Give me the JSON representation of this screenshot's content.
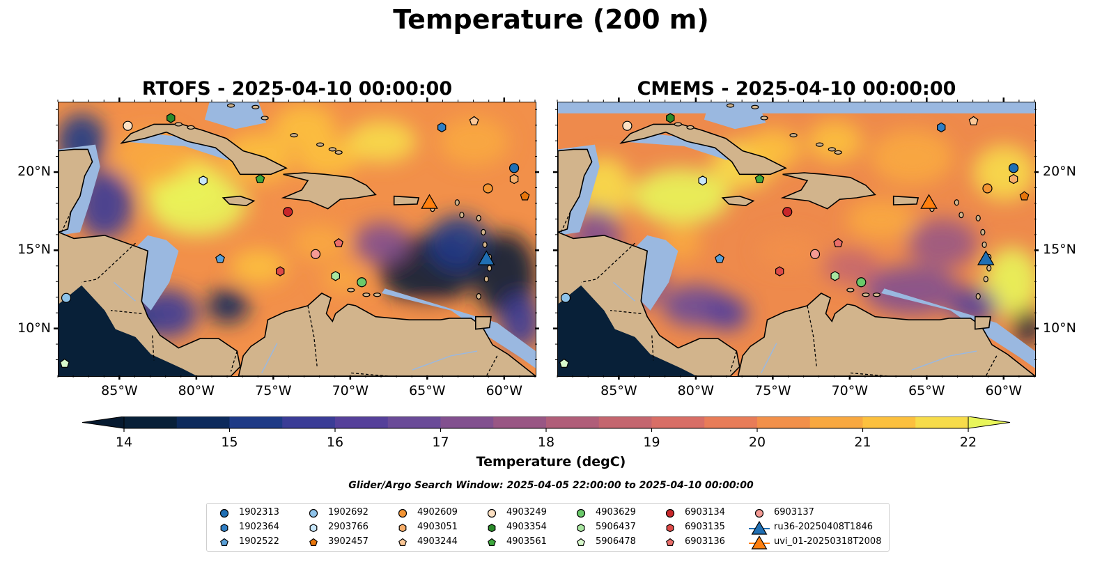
{
  "title": "Temperature (200 m)",
  "panels": [
    {
      "title": "RTOFS - 2025-04-10 00:00:00"
    },
    {
      "title": "CMEMS - 2025-04-10 00:00:00"
    }
  ],
  "lon_labels": [
    "85°W",
    "80°W",
    "75°W",
    "70°W",
    "65°W",
    "60°W"
  ],
  "lat_labels": [
    "20°N",
    "15°N",
    "10°N"
  ],
  "map_extent": {
    "lon": [
      -89,
      -58
    ],
    "lat": [
      7,
      24.5
    ]
  },
  "colorbar": {
    "label": "Temperature (degC)",
    "ticks": [
      "14",
      "15",
      "16",
      "17",
      "18",
      "19",
      "20",
      "21",
      "22"
    ],
    "range": [
      14,
      22
    ],
    "colors": [
      "#082038",
      "#0c2a5c",
      "#1e3a86",
      "#3a3c96",
      "#55409a",
      "#6a4b98",
      "#82508f",
      "#995684",
      "#b05e79",
      "#c4666f",
      "#d86e66",
      "#e87c58",
      "#f2904a",
      "#f8a840",
      "#fcc03e",
      "#f7dc4a"
    ],
    "extend_low": "#061a30",
    "extend_high": "#e8f55a"
  },
  "search_window": "Glider/Argo Search Window: 2025-04-05 22:00:00 to 2025-04-10 00:00:00",
  "legend": [
    {
      "label": "1902313",
      "marker": "circle",
      "color": "#1f6fb4"
    },
    {
      "label": "1902364",
      "marker": "hexagon",
      "color": "#2f7ec4"
    },
    {
      "label": "1902522",
      "marker": "pentagon",
      "color": "#5aa0d8"
    },
    {
      "label": "1902692",
      "marker": "circle",
      "color": "#8ec3ea"
    },
    {
      "label": "2903766",
      "marker": "hexagon",
      "color": "#c6e6fa"
    },
    {
      "label": "3902457",
      "marker": "pentagon",
      "color": "#e8750a"
    },
    {
      "label": "4902609",
      "marker": "circle",
      "color": "#f39433"
    },
    {
      "label": "4903051",
      "marker": "hexagon",
      "color": "#f8ae6a"
    },
    {
      "label": "4903244",
      "marker": "pentagon",
      "color": "#fbc796"
    },
    {
      "label": "4903249",
      "marker": "circle",
      "color": "#fde0c2"
    },
    {
      "label": "4903354",
      "marker": "hexagon",
      "color": "#2a8a2a"
    },
    {
      "label": "4903561",
      "marker": "pentagon",
      "color": "#3ea83e"
    },
    {
      "label": "4903629",
      "marker": "circle",
      "color": "#6ac96a"
    },
    {
      "label": "5906437",
      "marker": "hexagon",
      "color": "#a8e6a0"
    },
    {
      "label": "5906478",
      "marker": "pentagon",
      "color": "#d8f8cc"
    },
    {
      "label": "6903134",
      "marker": "circle",
      "color": "#c8272a"
    },
    {
      "label": "6903135",
      "marker": "hexagon",
      "color": "#de4a48"
    },
    {
      "label": "6903136",
      "marker": "pentagon",
      "color": "#ea6e6a"
    },
    {
      "label": "6903137",
      "marker": "circle",
      "color": "#f49a94"
    },
    {
      "label": "ru36-20250408T1846",
      "marker": "triangle",
      "color": "#1f6fb4"
    },
    {
      "label": "uvi_01-20250318T2008",
      "marker": "triangle",
      "color": "#ff7f0e"
    }
  ],
  "floats": [
    {
      "id": "1902313",
      "lon": -59.4,
      "lat": 20.3
    },
    {
      "id": "1902364",
      "lon": -64.1,
      "lat": 22.9
    },
    {
      "id": "1902522",
      "lon": -78.5,
      "lat": 14.5
    },
    {
      "id": "1902692",
      "lon": -88.5,
      "lat": 12.0
    },
    {
      "id": "2903766",
      "lon": -79.6,
      "lat": 19.5
    },
    {
      "id": "3902457",
      "lon": -58.7,
      "lat": 18.5
    },
    {
      "id": "4902609",
      "lon": -61.1,
      "lat": 19.0
    },
    {
      "id": "4903051",
      "lon": -59.4,
      "lat": 19.6
    },
    {
      "id": "4903244",
      "lon": -62.0,
      "lat": 23.3
    },
    {
      "id": "4903249",
      "lon": -84.5,
      "lat": 23.0
    },
    {
      "id": "4903354",
      "lon": -81.7,
      "lat": 23.5
    },
    {
      "id": "4903561",
      "lon": -75.9,
      "lat": 19.6
    },
    {
      "id": "4903629",
      "lon": -69.3,
      "lat": 13.0
    },
    {
      "id": "5906437",
      "lon": -71.0,
      "lat": 13.4
    },
    {
      "id": "5906478",
      "lon": -88.6,
      "lat": 7.8
    },
    {
      "id": "6903134",
      "lon": -74.1,
      "lat": 17.5
    },
    {
      "id": "6903135",
      "lon": -74.6,
      "lat": 13.7
    },
    {
      "id": "6903136",
      "lon": -70.8,
      "lat": 15.5
    },
    {
      "id": "6903137",
      "lon": -72.3,
      "lat": 14.8
    }
  ],
  "gliders": [
    {
      "id": "ru36-20250408T1846",
      "lon": -61.2,
      "lat": 14.5
    },
    {
      "id": "uvi_01-20250318T2008",
      "lon": -64.9,
      "lat": 18.1
    }
  ]
}
